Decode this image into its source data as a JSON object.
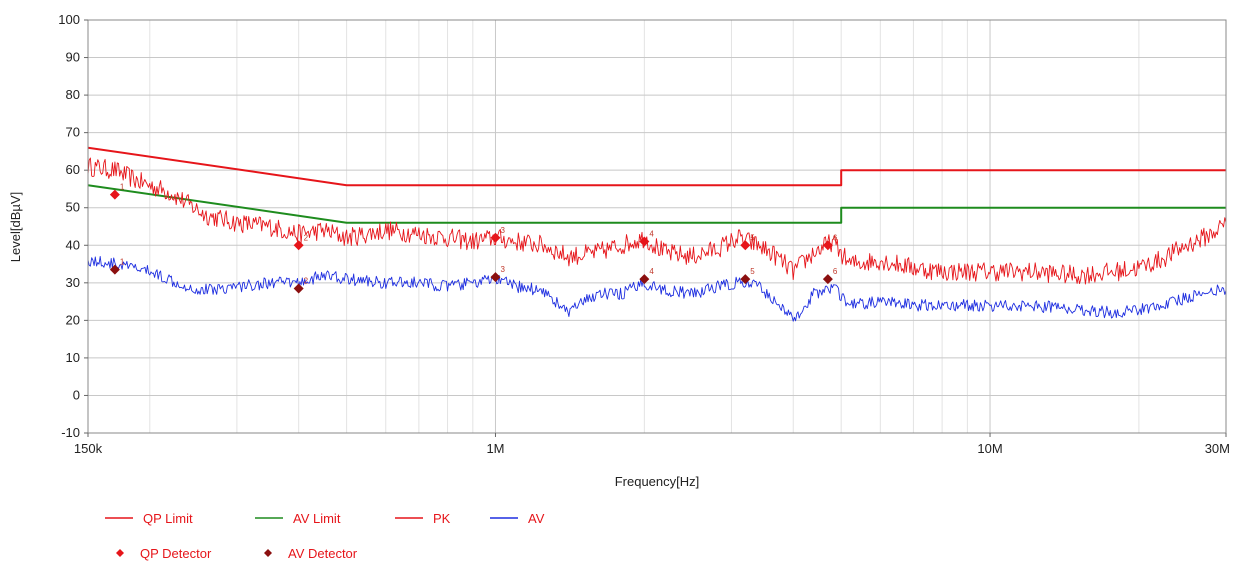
{
  "chart_data": {
    "type": "line",
    "xlabel": "Frequency[Hz]",
    "ylabel": "Level[dBµV]",
    "x_scale": "log",
    "xlim": [
      150000,
      30000000
    ],
    "ylim": [
      -10,
      100
    ],
    "y_ticks": [
      -10,
      0,
      10,
      20,
      30,
      40,
      50,
      60,
      70,
      80,
      90,
      100
    ],
    "x_tick_labels": [
      {
        "value": 150000,
        "label": "150k"
      },
      {
        "value": 1000000,
        "label": "1M"
      },
      {
        "value": 10000000,
        "label": "10M"
      },
      {
        "value": 30000000,
        "label": "30M"
      }
    ],
    "grid": true,
    "legend_position": "bottom-left",
    "colors": {
      "qp_limit": "#e6151a",
      "av_limit": "#1e8c1e",
      "pk": "#e6151a",
      "av": "#1f2fe0",
      "qp_detector": "#e6151a",
      "av_detector": "#8b0f0f",
      "grid_major": "#c8c8c8",
      "grid_minor": "#e3e3e3"
    },
    "series": [
      {
        "name": "QP Limit",
        "key": "qp_limit",
        "points": [
          [
            150000,
            66
          ],
          [
            500000,
            56
          ],
          [
            5000000,
            56
          ],
          [
            5000000,
            60
          ],
          [
            30000000,
            60
          ]
        ]
      },
      {
        "name": "AV Limit",
        "key": "av_limit",
        "points": [
          [
            150000,
            56
          ],
          [
            500000,
            46
          ],
          [
            5000000,
            46
          ],
          [
            5000000,
            50
          ],
          [
            30000000,
            50
          ]
        ]
      },
      {
        "name": "PK",
        "key": "pk",
        "points": [
          [
            150000,
            61
          ],
          [
            170000,
            60
          ],
          [
            190000,
            57
          ],
          [
            220000,
            54
          ],
          [
            260000,
            48
          ],
          [
            300000,
            46
          ],
          [
            350000,
            45
          ],
          [
            400000,
            43
          ],
          [
            450000,
            44
          ],
          [
            500000,
            42
          ],
          [
            600000,
            44
          ],
          [
            700000,
            43
          ],
          [
            800000,
            42
          ],
          [
            900000,
            41
          ],
          [
            1000000,
            42
          ],
          [
            1100000,
            41
          ],
          [
            1250000,
            40
          ],
          [
            1400000,
            37
          ],
          [
            1600000,
            38
          ],
          [
            1800000,
            40
          ],
          [
            2000000,
            42
          ],
          [
            2200000,
            38
          ],
          [
            2500000,
            37
          ],
          [
            2800000,
            39
          ],
          [
            3100000,
            42
          ],
          [
            3400000,
            40
          ],
          [
            3700000,
            37
          ],
          [
            4000000,
            33
          ],
          [
            4400000,
            38
          ],
          [
            4800000,
            41
          ],
          [
            5200000,
            35
          ],
          [
            6000000,
            36
          ],
          [
            7000000,
            34
          ],
          [
            8000000,
            33
          ],
          [
            10000000,
            33
          ],
          [
            12000000,
            33
          ],
          [
            15000000,
            32
          ],
          [
            18000000,
            33
          ],
          [
            20000000,
            34
          ],
          [
            22000000,
            36
          ],
          [
            25000000,
            40
          ],
          [
            28000000,
            43
          ],
          [
            30000000,
            46
          ]
        ]
      },
      {
        "name": "AV",
        "key": "av",
        "points": [
          [
            150000,
            36
          ],
          [
            170000,
            35
          ],
          [
            200000,
            33
          ],
          [
            250000,
            28
          ],
          [
            300000,
            29
          ],
          [
            350000,
            30
          ],
          [
            400000,
            30
          ],
          [
            450000,
            32
          ],
          [
            500000,
            31
          ],
          [
            600000,
            30
          ],
          [
            700000,
            30
          ],
          [
            800000,
            29
          ],
          [
            900000,
            30
          ],
          [
            1000000,
            31
          ],
          [
            1100000,
            29
          ],
          [
            1250000,
            28
          ],
          [
            1400000,
            22
          ],
          [
            1600000,
            27
          ],
          [
            1800000,
            27
          ],
          [
            2000000,
            30
          ],
          [
            2200000,
            28
          ],
          [
            2500000,
            27
          ],
          [
            2800000,
            29
          ],
          [
            3100000,
            30
          ],
          [
            3400000,
            29
          ],
          [
            3700000,
            25
          ],
          [
            4000000,
            20
          ],
          [
            4400000,
            27
          ],
          [
            4800000,
            29
          ],
          [
            5200000,
            24
          ],
          [
            6000000,
            25
          ],
          [
            7000000,
            24
          ],
          [
            8000000,
            24
          ],
          [
            10000000,
            24
          ],
          [
            12000000,
            24
          ],
          [
            15000000,
            23
          ],
          [
            18000000,
            22
          ],
          [
            20000000,
            23
          ],
          [
            22000000,
            24
          ],
          [
            25000000,
            26
          ],
          [
            28000000,
            28
          ],
          [
            30000000,
            28
          ]
        ]
      }
    ],
    "markers": [
      {
        "name": "QP Detector",
        "key": "qp_detector",
        "points": [
          {
            "label": "1",
            "x": 170000,
            "y": 53.5
          },
          {
            "label": "2",
            "x": 400000,
            "y": 40
          },
          {
            "label": "3",
            "x": 1000000,
            "y": 42
          },
          {
            "label": "4",
            "x": 2000000,
            "y": 41
          },
          {
            "label": "5",
            "x": 3200000,
            "y": 40
          },
          {
            "label": "6",
            "x": 4700000,
            "y": 40
          }
        ]
      },
      {
        "name": "AV Detector",
        "key": "av_detector",
        "points": [
          {
            "label": "1",
            "x": 170000,
            "y": 33.5
          },
          {
            "label": "2",
            "x": 400000,
            "y": 28.5
          },
          {
            "label": "3",
            "x": 1000000,
            "y": 31.5
          },
          {
            "label": "4",
            "x": 2000000,
            "y": 31
          },
          {
            "label": "5",
            "x": 3200000,
            "y": 31
          },
          {
            "label": "6",
            "x": 4700000,
            "y": 31
          }
        ]
      }
    ]
  }
}
